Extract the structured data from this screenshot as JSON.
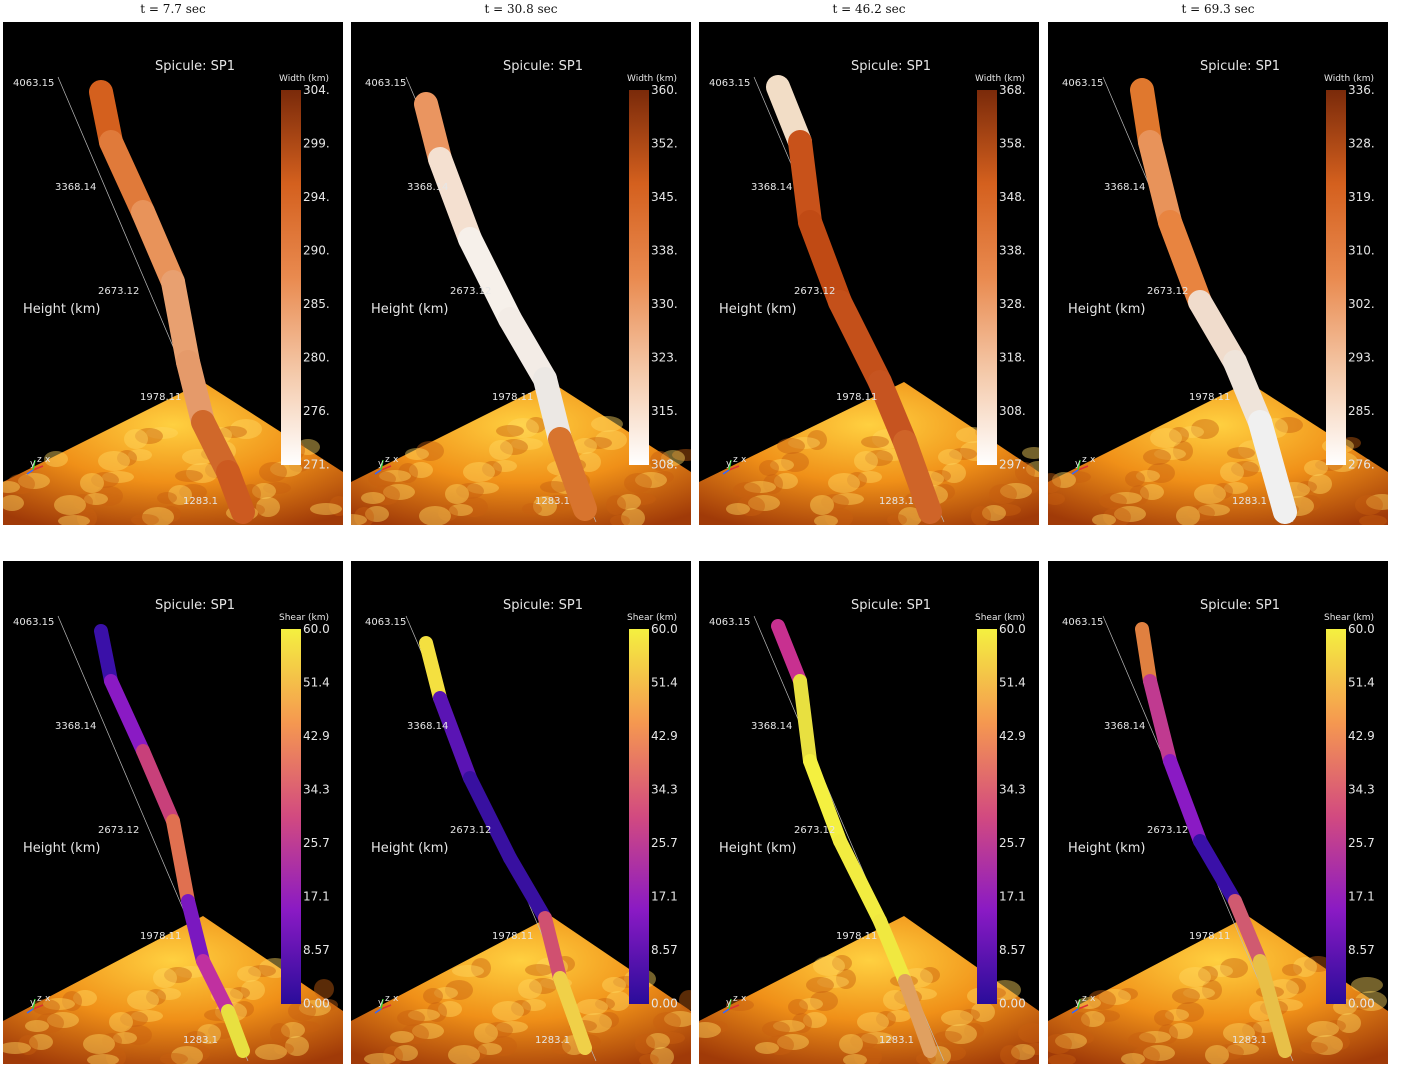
{
  "spicule_label": "Spicule: SP1",
  "height_label": "Height (km)",
  "axis_triad": {
    "y": "y",
    "z": "z",
    "x": "x"
  },
  "height_ticks": [
    "4063.15",
    "3368.14",
    "2673.12",
    "1978.11",
    "1283.1"
  ],
  "columns": [
    {
      "time": "t = 7.7 sec"
    },
    {
      "time": "t = 30.8 sec"
    },
    {
      "time": "t = 46.2 sec"
    },
    {
      "time": "t = 69.3 sec"
    }
  ],
  "rows": [
    {
      "quantity": "Width (km)",
      "colormap": [
        "#ffffff",
        "#f4c8a8",
        "#e98a4f",
        "#d4601e",
        "#7a2a0a"
      ],
      "scales": [
        [
          "304.",
          "299.",
          "294.",
          "290.",
          "285.",
          "280.",
          "276.",
          "271."
        ],
        [
          "360.",
          "352.",
          "345.",
          "338.",
          "330.",
          "323.",
          "315.",
          "308."
        ],
        [
          "368.",
          "358.",
          "348.",
          "338.",
          "328.",
          "318.",
          "308.",
          "297."
        ],
        [
          "336.",
          "328.",
          "319.",
          "310.",
          "302.",
          "293.",
          "285.",
          "276."
        ]
      ]
    },
    {
      "quantity": "Shear (km)",
      "colormap": [
        "#2a0c9a",
        "#8a1ac4",
        "#d24a80",
        "#f59850",
        "#f4f040"
      ],
      "scales": [
        [
          "60.0",
          "51.4",
          "42.9",
          "34.3",
          "25.7",
          "17.1",
          "8.57",
          "0.00"
        ],
        [
          "60.0",
          "51.4",
          "42.9",
          "34.3",
          "25.7",
          "17.1",
          "8.57",
          "0.00"
        ],
        [
          "60.0",
          "51.4",
          "42.9",
          "34.3",
          "25.7",
          "17.1",
          "8.57",
          "0.00"
        ],
        [
          "60.0",
          "51.4",
          "42.9",
          "34.3",
          "25.7",
          "17.1",
          "8.57",
          "0.00"
        ]
      ]
    }
  ]
}
